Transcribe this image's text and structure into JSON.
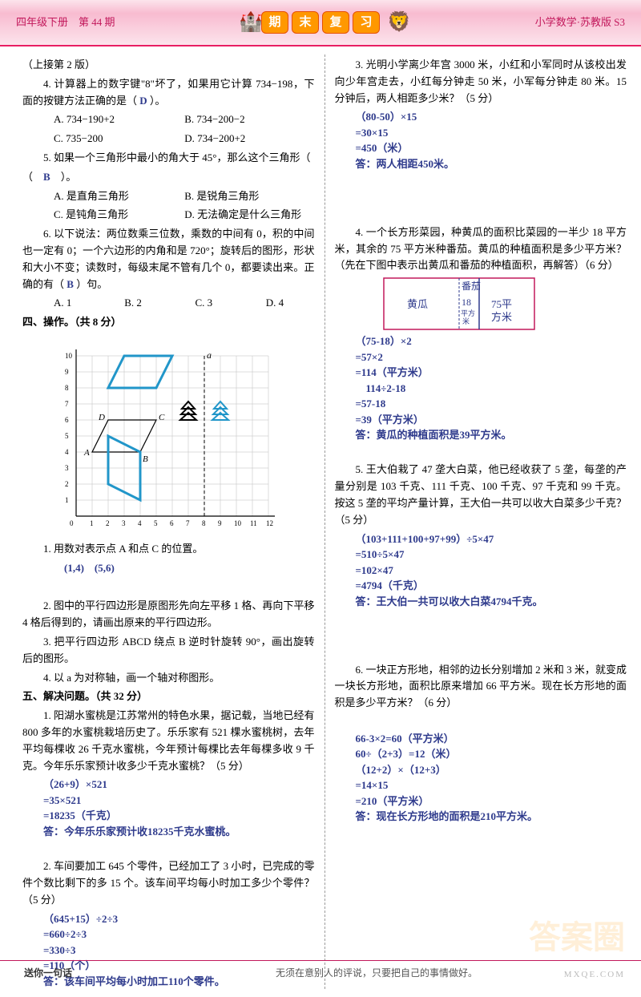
{
  "header": {
    "left": "四年级下册　第 44 期",
    "center_chars": [
      "期",
      "末",
      "复",
      "习"
    ],
    "right": "小学数学·苏教版 S3"
  },
  "left_col": {
    "continue_note": "（上接第 2 版）",
    "q4_line1": "4. 计算器上的数字键\"8\"坏了，如果用它计算 734−198，下面的按键方法正确的是（",
    "q4_ans": "D",
    "q4_line1_end": "）。",
    "q4_optA": "A. 734−190+2",
    "q4_optB": "B. 734−200−2",
    "q4_optC": "C. 735−200",
    "q4_optD": "D. 734−200+2",
    "q5_line1": "5. 如果一个三角形中最小的角大于 45°，那么这个三角形（",
    "q5_ans": "B",
    "q5_line1_end": "）。",
    "q5_optA": "A. 是直角三角形",
    "q5_optB": "B. 是锐角三角形",
    "q5_optC": "C. 是钝角三角形",
    "q5_optD": "D. 无法确定是什么三角形",
    "q6_text": "6. 以下说法：两位数乘三位数，乘数的中间有 0，积的中间也一定有 0；一个六边形的内角和是 720°；旋转后的图形，形状和大小不变；读数时，每级末尾不管有几个 0，都要读出来。正确的有（",
    "q6_ans": "B",
    "q6_end": "）句。",
    "q6_optA": "A. 1",
    "q6_optB": "B. 2",
    "q6_optC": "C. 3",
    "q6_optD": "D. 4",
    "sec4_title": "四、操作。（共 8 分）",
    "grid": {
      "x_max": 12,
      "y_max": 10,
      "axis_color": "#000000",
      "grid_color": "#bdbdbd",
      "shape_color": "#2196c9",
      "shape_stroke": 3
    },
    "op_q1": "1. 用数对表示点 A 和点 C 的位置。",
    "op_q1_ans": "(1,4)　(5,6)",
    "op_q2": "2. 图中的平行四边形是原图形先向左平移 1 格、再向下平移 4 格后得到的，请画出原来的平行四边形。",
    "op_q3": "3. 把平行四边形 ABCD 绕点 B 逆时针旋转 90°，画出旋转后的图形。",
    "op_q4": "4. 以 a 为对称轴，画一个轴对称图形。",
    "sec5_title": "五、解决问题。（共 32 分）",
    "p1_text": "1. 阳湖水蜜桃是江苏常州的特色水果，据记载，当地已经有 800 多年的水蜜桃栽培历史了。乐乐家有 521 棵水蜜桃树，去年平均每棵收 26 千克水蜜桃，今年预计每棵比去年每棵多收 9 千克。今年乐乐家预计收多少千克水蜜桃？（5 分）",
    "p1_calc": [
      "（26+9）×521",
      "=35×521",
      "=18235（千克）",
      "答：今年乐乐家预计收18235千克水蜜桃。"
    ],
    "p2_text": "2. 车间要加工 645 个零件，已经加工了 3 小时，已完成的零件个数比剩下的多 15 个。该车间平均每小时加工多少个零件？（5 分）",
    "p2_calc": [
      "（645+15）÷2÷3",
      "=660÷2÷3",
      "=330÷3",
      "=110（个）",
      "答：该车间平均每小时加工110个零件。"
    ]
  },
  "right_col": {
    "p3_text": "3. 光明小学离少年宫 3000 米，小红和小军同时从该校出发向少年宫走去，小红每分钟走 50 米，小军每分钟走 80 米。15 分钟后，两人相距多少米？（5 分）",
    "p3_calc": [
      "（80-50）×15",
      "=30×15",
      "=450（米）",
      "答：两人相距450米。"
    ],
    "p4_text": "4. 一个长方形菜园，种黄瓜的面积比菜园的一半少 18 平方米，其余的 75 平方米种番茄。黄瓜的种植面积是多少平方米？（先在下图中表示出黄瓜和番茄的种植面积，再解答）（6 分）",
    "p4_diagram": {
      "left_label": "黄瓜",
      "mid_num": "18",
      "mid_unit": "平方米",
      "mid_top": "番茄",
      "right_num": "75平",
      "right_unit": "方米",
      "border_color": "#c2185b",
      "split_color": "#2e3a8c"
    },
    "p4_calc": [
      "（75-18）×2",
      "=57×2",
      "=114（平方米）",
      "　114÷2-18",
      "=57-18",
      "=39（平方米）",
      "答：黄瓜的种植面积是39平方米。"
    ],
    "p5_text": "5. 王大伯栽了 47 垄大白菜，他已经收获了 5 垄，每垄的产量分别是 103 千克、111 千克、100 千克、97 千克和 99 千克。按这 5 垄的平均产量计算，王大伯一共可以收大白菜多少千克？（5 分）",
    "p5_calc": [
      "（103+111+100+97+99）÷5×47",
      "=510÷5×47",
      "=102×47",
      "=4794（千克）",
      "答：王大伯一共可以收大白菜4794千克。"
    ],
    "p6_text": "6. 一块正方形地，相邻的边长分别增加 2 米和 3 米，就变成一块长方形地，面积比原来增加 66 平方米。现在长方形地的面积是多少平方米？（6 分）",
    "p6_calc": [
      "66-3×2=60（平方米）",
      "60÷（2+3）=12（米）",
      "（12+2）×（12+3）",
      "=14×15",
      "=210（平方米）",
      "答：现在长方形地的面积是210平方米。"
    ]
  },
  "footer": {
    "left": "送你一句话",
    "right": "无须在意别人的评说，只要把自己的事情做好。"
  },
  "watermark": "答案圈",
  "wm_url": "MXQE.COM"
}
